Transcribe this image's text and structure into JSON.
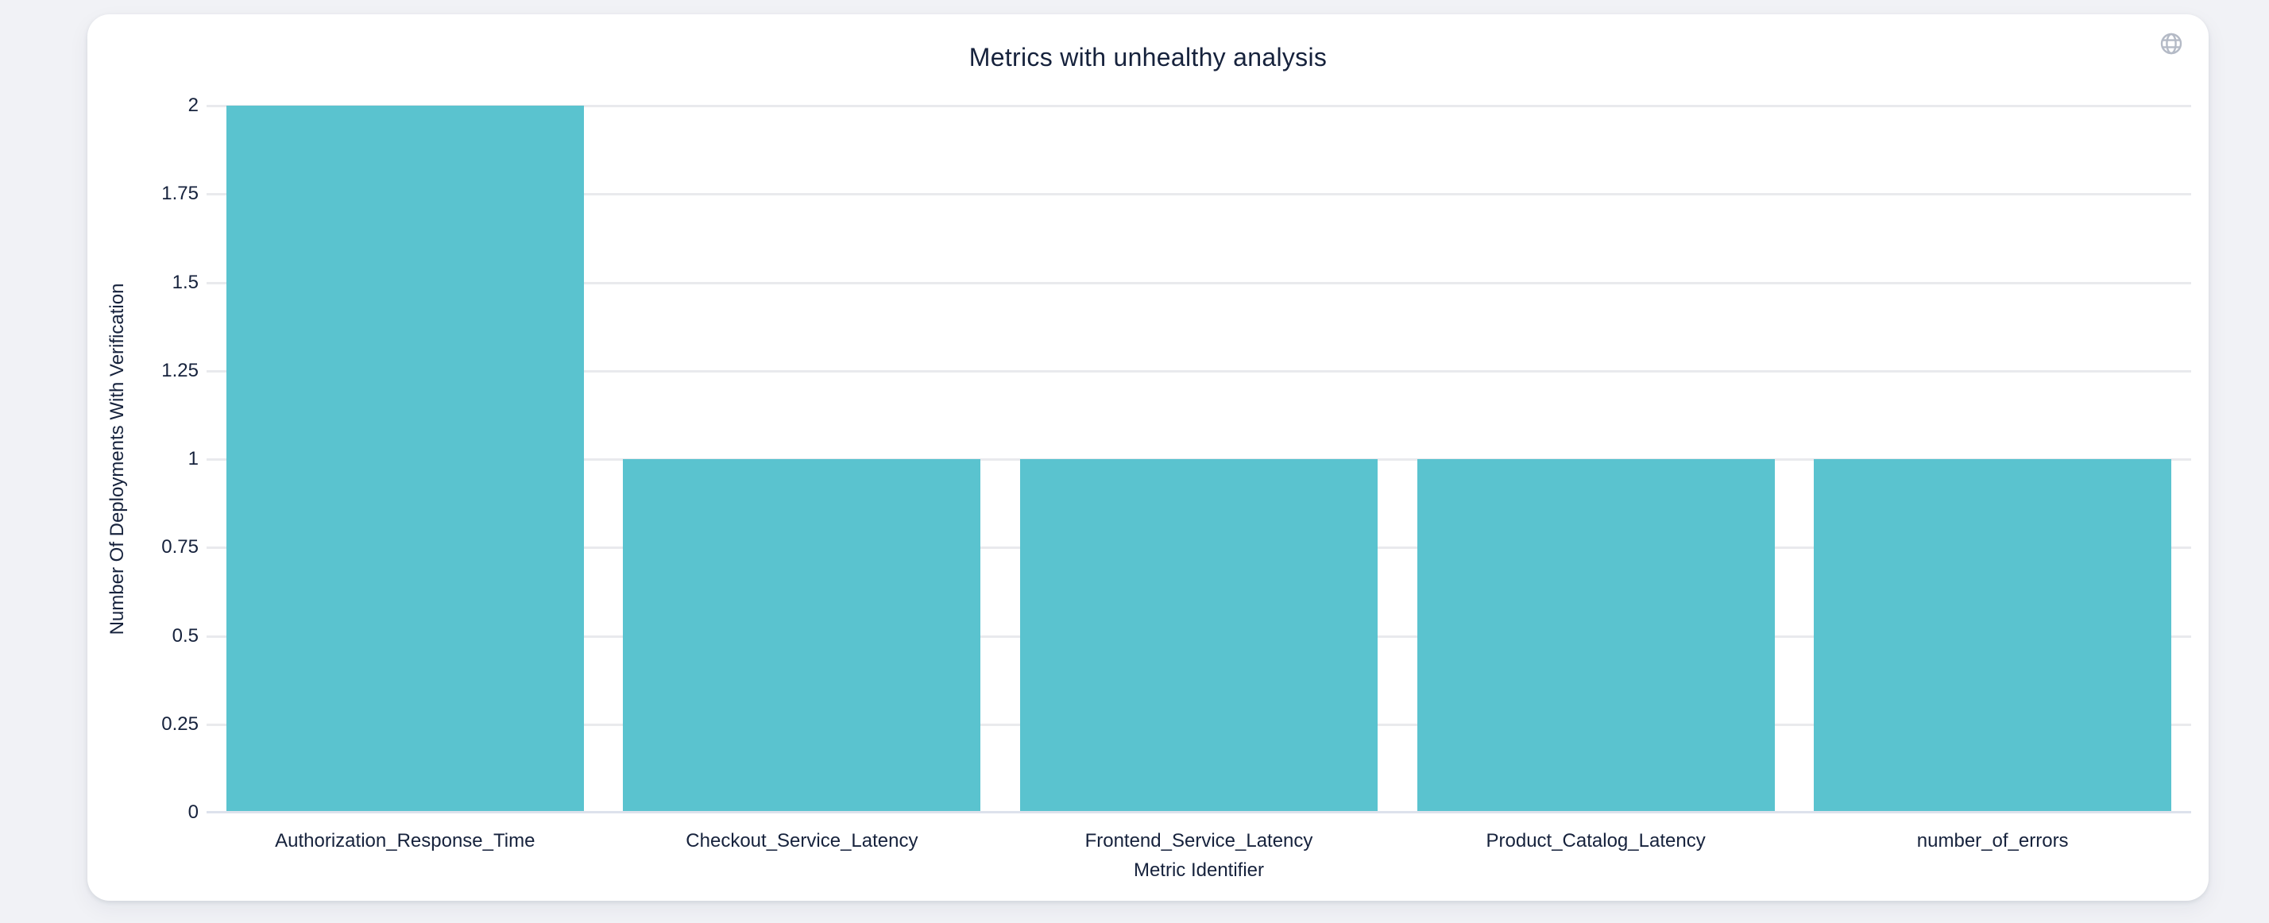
{
  "theme": {
    "page_bg": "#f1f2f6",
    "card_bg": "#ffffff",
    "text_color": "#16223c",
    "grid_color": "#e9eaed",
    "axis_line_color": "#dde2ec",
    "icon_color": "#b4bac6"
  },
  "toolbar": {
    "icon": "globe-icon"
  },
  "chart_data": {
    "type": "bar",
    "title": "Metrics with unhealthy analysis",
    "categories": [
      "Authorization_Response_Time",
      "Checkout_Service_Latency",
      "Frontend_Service_Latency",
      "Product_Catalog_Latency",
      "number_of_errors"
    ],
    "values": [
      2,
      1,
      1,
      1,
      1
    ],
    "xlabel": "Metric Identifier",
    "ylabel": "Number Of Deployments With Verification",
    "ylim": [
      0,
      2
    ],
    "yticks": [
      0,
      0.25,
      0.5,
      0.75,
      1,
      1.25,
      1.5,
      1.75,
      2
    ],
    "grid": true,
    "legend": false,
    "bar_color": "#5ac3cf"
  }
}
